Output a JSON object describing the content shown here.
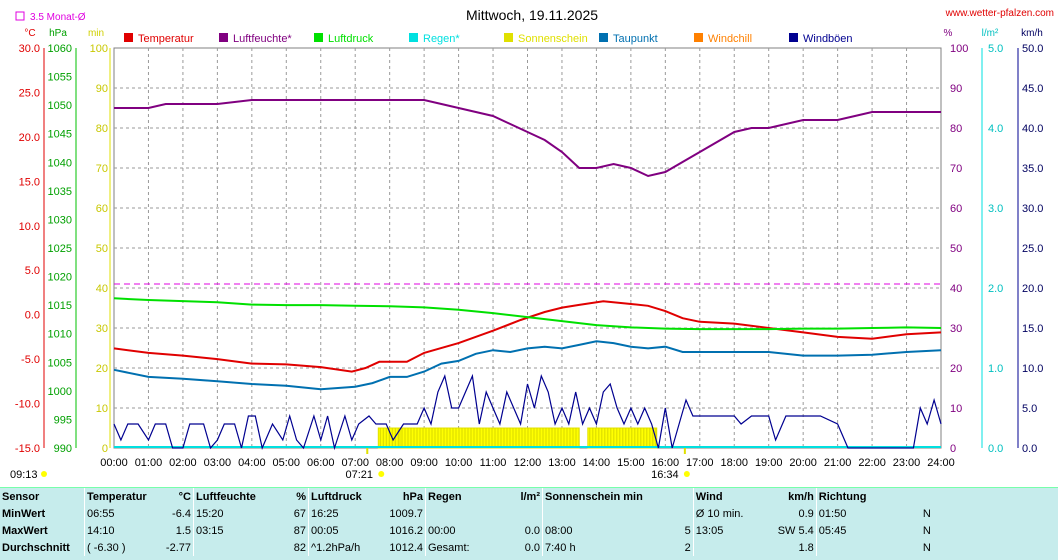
{
  "header": {
    "title": "Mittwoch, 19.11.2025",
    "site": "www.wetter-pfalzen.com",
    "avg_note": "3.5 Monat-Ø"
  },
  "axes": {
    "temp_unit": "°C",
    "press_unit": "hPa",
    "min_unit": "min",
    "pct_unit": "%",
    "rain_unit": "l/m²",
    "wind_unit": "km/h",
    "temp_ticks": [
      "30.0",
      "25.0",
      "20.0",
      "15.0",
      "10.0",
      "5.0",
      "0.0",
      "-5.0",
      "-10.0",
      "-15.0"
    ],
    "press_ticks": [
      "1060",
      "1055",
      "1050",
      "1045",
      "1040",
      "1035",
      "1030",
      "1025",
      "1020",
      "1015",
      "1010",
      "1005",
      "1000",
      "995",
      "990"
    ],
    "min_ticks": [
      "100",
      "90",
      "80",
      "70",
      "60",
      "50",
      "40",
      "30",
      "20",
      "10",
      "0"
    ],
    "pct_ticks": [
      "100",
      "90",
      "80",
      "70",
      "60",
      "50",
      "40",
      "30",
      "20",
      "10",
      "0"
    ],
    "rain_ticks": [
      "5.0",
      "4.0",
      "3.0",
      "2.0",
      "1.0",
      "0.0"
    ],
    "wind_ticks": [
      "50.0",
      "45.0",
      "40.0",
      "35.0",
      "30.0",
      "25.0",
      "20.0",
      "15.0",
      "10.0",
      "5.0",
      "0.0"
    ],
    "time_ticks": [
      "00:00",
      "01:00",
      "02:00",
      "03:00",
      "04:00",
      "05:00",
      "06:00",
      "07:00",
      "08:00",
      "09:00",
      "10:00",
      "11:00",
      "12:00",
      "13:00",
      "14:00",
      "15:00",
      "16:00",
      "17:00",
      "18:00",
      "19:00",
      "20:00",
      "21:00",
      "22:00",
      "23:00",
      "24:00"
    ],
    "sunrise": "07:21",
    "sunset": "16:34"
  },
  "legend": [
    {
      "label": "Temperatur",
      "color": "#e00000"
    },
    {
      "label": "Luftfeuchte*",
      "color": "#800080"
    },
    {
      "label": "Luftdruck",
      "color": "#00e000"
    },
    {
      "label": "Regen*",
      "color": "#00e0e0"
    },
    {
      "label": "Sonnenschein",
      "color": "#e0e000"
    },
    {
      "label": "Taupunkt",
      "color": "#0070b0"
    },
    {
      "label": "Windchill",
      "color": "#ff8000"
    },
    {
      "label": "Windböen",
      "color": "#000090"
    }
  ],
  "chart_data": {
    "type": "line",
    "x_unit": "hour",
    "xlim": [
      0,
      24
    ],
    "avg_humidity_line": 41,
    "series": [
      {
        "name": "Temperatur",
        "axis": "temp",
        "points": [
          [
            0,
            -3.8
          ],
          [
            1,
            -4.3
          ],
          [
            2,
            -4.6
          ],
          [
            3,
            -5.0
          ],
          [
            4,
            -5.5
          ],
          [
            5,
            -5.6
          ],
          [
            6,
            -5.9
          ],
          [
            6.9,
            -6.4
          ],
          [
            7.3,
            -6.0
          ],
          [
            7.7,
            -5.3
          ],
          [
            8.5,
            -5.3
          ],
          [
            9,
            -4.3
          ],
          [
            10,
            -3.2
          ],
          [
            11,
            -1.8
          ],
          [
            11.8,
            -0.6
          ],
          [
            12.5,
            0.3
          ],
          [
            13,
            0.8
          ],
          [
            13.5,
            1.1
          ],
          [
            14.2,
            1.5
          ],
          [
            15,
            1.2
          ],
          [
            15.5,
            1.0
          ],
          [
            16,
            0.4
          ],
          [
            16.5,
            -0.4
          ],
          [
            17,
            -0.8
          ],
          [
            18,
            -1.0
          ],
          [
            19,
            -1.5
          ],
          [
            20,
            -2.0
          ],
          [
            21,
            -2.5
          ],
          [
            22,
            -2.7
          ],
          [
            23,
            -2.2
          ],
          [
            24,
            -2.0
          ]
        ]
      },
      {
        "name": "Luftfeuchte*",
        "axis": "pct",
        "points": [
          [
            0,
            85
          ],
          [
            1,
            85
          ],
          [
            1.5,
            86
          ],
          [
            3,
            86
          ],
          [
            4,
            87
          ],
          [
            5,
            87
          ],
          [
            6,
            87
          ],
          [
            7,
            87
          ],
          [
            9,
            87
          ],
          [
            9.5,
            86
          ],
          [
            10,
            85
          ],
          [
            11,
            83
          ],
          [
            12,
            79
          ],
          [
            12.5,
            77
          ],
          [
            13,
            74
          ],
          [
            13.5,
            70
          ],
          [
            14,
            70
          ],
          [
            14.5,
            71
          ],
          [
            15,
            70
          ],
          [
            15.5,
            68
          ],
          [
            16,
            69
          ],
          [
            17,
            74
          ],
          [
            18,
            79
          ],
          [
            18.5,
            80
          ],
          [
            19,
            80
          ],
          [
            20,
            82
          ],
          [
            21,
            82
          ],
          [
            21.5,
            83
          ],
          [
            22,
            84
          ],
          [
            23,
            84
          ],
          [
            24,
            84
          ]
        ]
      },
      {
        "name": "Luftdruck",
        "axis": "press",
        "points": [
          [
            0,
            1016.2
          ],
          [
            1,
            1015.9
          ],
          [
            2,
            1015.7
          ],
          [
            3,
            1015.5
          ],
          [
            4,
            1015.1
          ],
          [
            5,
            1015.0
          ],
          [
            6,
            1015.0
          ],
          [
            7,
            1014.9
          ],
          [
            8,
            1014.8
          ],
          [
            9,
            1014.6
          ],
          [
            10,
            1014.2
          ],
          [
            11,
            1013.6
          ],
          [
            12,
            1012.9
          ],
          [
            13,
            1012.2
          ],
          [
            14,
            1011.5
          ],
          [
            15,
            1011.1
          ],
          [
            16,
            1010.9
          ],
          [
            17,
            1010.8
          ],
          [
            18,
            1010.8
          ],
          [
            19,
            1010.8
          ],
          [
            20,
            1010.9
          ],
          [
            21,
            1010.9
          ],
          [
            22,
            1011.0
          ],
          [
            23,
            1011.1
          ],
          [
            24,
            1011.0
          ]
        ]
      },
      {
        "name": "Taupunkt",
        "axis": "temp",
        "points": [
          [
            0,
            -6.2
          ],
          [
            1,
            -7.0
          ],
          [
            2,
            -7.2
          ],
          [
            3,
            -7.5
          ],
          [
            4,
            -7.8
          ],
          [
            5,
            -8.0
          ],
          [
            6,
            -8.4
          ],
          [
            7,
            -8.1
          ],
          [
            7.5,
            -7.7
          ],
          [
            8,
            -7.0
          ],
          [
            8.5,
            -7.0
          ],
          [
            9,
            -6.4
          ],
          [
            9.5,
            -5.5
          ],
          [
            10,
            -5.2
          ],
          [
            10.5,
            -4.4
          ],
          [
            11,
            -4.0
          ],
          [
            11.5,
            -4.2
          ],
          [
            12,
            -3.8
          ],
          [
            12.5,
            -3.6
          ],
          [
            13,
            -3.8
          ],
          [
            13.5,
            -3.4
          ],
          [
            14,
            -3.0
          ],
          [
            14.5,
            -3.2
          ],
          [
            15,
            -3.6
          ],
          [
            15.5,
            -3.8
          ],
          [
            16,
            -3.6
          ],
          [
            16.5,
            -4.2
          ],
          [
            17,
            -4.2
          ],
          [
            18,
            -4.2
          ],
          [
            19,
            -4.2
          ],
          [
            20,
            -4.6
          ],
          [
            21,
            -4.6
          ],
          [
            22,
            -4.5
          ],
          [
            23,
            -4.2
          ],
          [
            24,
            -4.0
          ]
        ]
      },
      {
        "name": "Windböen",
        "axis": "wind",
        "points": [
          [
            0,
            3
          ],
          [
            0.2,
            1
          ],
          [
            0.4,
            3
          ],
          [
            0.7,
            3
          ],
          [
            1,
            1
          ],
          [
            1.2,
            3
          ],
          [
            1.5,
            3
          ],
          [
            1.7,
            0
          ],
          [
            2,
            0
          ],
          [
            2.2,
            3
          ],
          [
            2.4,
            3
          ],
          [
            2.6,
            3
          ],
          [
            2.8,
            0
          ],
          [
            3,
            1
          ],
          [
            3.2,
            3
          ],
          [
            3.5,
            3
          ],
          [
            3.7,
            0
          ],
          [
            3.9,
            4
          ],
          [
            4.1,
            4
          ],
          [
            4.3,
            0
          ],
          [
            4.6,
            3
          ],
          [
            4.9,
            1
          ],
          [
            5.1,
            4
          ],
          [
            5.3,
            1
          ],
          [
            5.5,
            0
          ],
          [
            5.8,
            4
          ],
          [
            6,
            1
          ],
          [
            6.2,
            4
          ],
          [
            6.4,
            0
          ],
          [
            6.7,
            4
          ],
          [
            6.9,
            1
          ],
          [
            7.1,
            3
          ],
          [
            7.4,
            4
          ],
          [
            7.6,
            3
          ],
          [
            7.9,
            3
          ],
          [
            8.1,
            1
          ],
          [
            8.4,
            3
          ],
          [
            8.6,
            3
          ],
          [
            8.8,
            3
          ],
          [
            9,
            5
          ],
          [
            9.2,
            3
          ],
          [
            9.4,
            7
          ],
          [
            9.6,
            9
          ],
          [
            9.8,
            5
          ],
          [
            10,
            5
          ],
          [
            10.2,
            7
          ],
          [
            10.4,
            9
          ],
          [
            10.6,
            3
          ],
          [
            10.8,
            7
          ],
          [
            11,
            5
          ],
          [
            11.2,
            3
          ],
          [
            11.4,
            7
          ],
          [
            11.6,
            5
          ],
          [
            11.8,
            3
          ],
          [
            12,
            8
          ],
          [
            12.2,
            5
          ],
          [
            12.4,
            9
          ],
          [
            12.6,
            7
          ],
          [
            12.8,
            3
          ],
          [
            13,
            5
          ],
          [
            13.2,
            3
          ],
          [
            13.4,
            7
          ],
          [
            13.6,
            3
          ],
          [
            13.8,
            5
          ],
          [
            14,
            3
          ],
          [
            14.2,
            7
          ],
          [
            14.4,
            8
          ],
          [
            14.6,
            5
          ],
          [
            14.8,
            3
          ],
          [
            15,
            5
          ],
          [
            15.2,
            3
          ],
          [
            15.4,
            5
          ],
          [
            15.6,
            3
          ],
          [
            15.8,
            0
          ],
          [
            16,
            5
          ],
          [
            16.2,
            0
          ],
          [
            16.4,
            3
          ],
          [
            16.6,
            6
          ],
          [
            16.8,
            4
          ],
          [
            17,
            4
          ],
          [
            17.3,
            4
          ],
          [
            17.6,
            4
          ],
          [
            18,
            4
          ],
          [
            18.2,
            3
          ],
          [
            18.5,
            4
          ],
          [
            18.8,
            4
          ],
          [
            19,
            4
          ],
          [
            19.2,
            1
          ],
          [
            19.5,
            4
          ],
          [
            20,
            4
          ],
          [
            20.5,
            4
          ],
          [
            21,
            3
          ],
          [
            21.3,
            0
          ],
          [
            21.6,
            0
          ],
          [
            22,
            0
          ],
          [
            22.5,
            0
          ],
          [
            23,
            0
          ],
          [
            23.2,
            0
          ],
          [
            23.4,
            5
          ],
          [
            23.6,
            3
          ],
          [
            23.8,
            6
          ],
          [
            24,
            3
          ]
        ]
      }
    ],
    "sunshine": {
      "axis": "min",
      "intervals": [
        [
          7.67,
          8.3,
          5
        ],
        [
          8.3,
          13.5,
          5
        ],
        [
          13.75,
          15.75,
          5
        ]
      ]
    }
  },
  "table": {
    "headers": [
      "Sensor",
      "Temperatur",
      "°C",
      "Luftfeuchte",
      "%",
      "Luftdruck",
      "hPa",
      "Regen",
      "l/m²",
      "Sonnenschein min",
      "",
      "Wind",
      "km/h",
      "Richtung",
      ""
    ],
    "rows": [
      [
        "MinWert",
        "06:55",
        "-6.4",
        "15:20",
        "67",
        "16:25",
        "1009.7",
        "",
        "",
        "",
        "",
        "Ø 10 min.",
        "0.9",
        "01:50",
        "N"
      ],
      [
        "MaxWert",
        "14:10",
        "1.5",
        "03:15",
        "87",
        "00:05",
        "1016.2",
        "00:00",
        "0.0",
        "08:00",
        "5",
        "13:05",
        "SW 5.4",
        "05:45",
        "N"
      ],
      [
        "Durchschnitt",
        "( -6.30 )",
        "-2.77",
        "",
        "82",
        "^1.2hPa/h",
        "1012.4",
        "Gesamt:",
        "0.0",
        "7:40 h",
        "2",
        "",
        "1.8",
        "",
        "N"
      ]
    ]
  }
}
